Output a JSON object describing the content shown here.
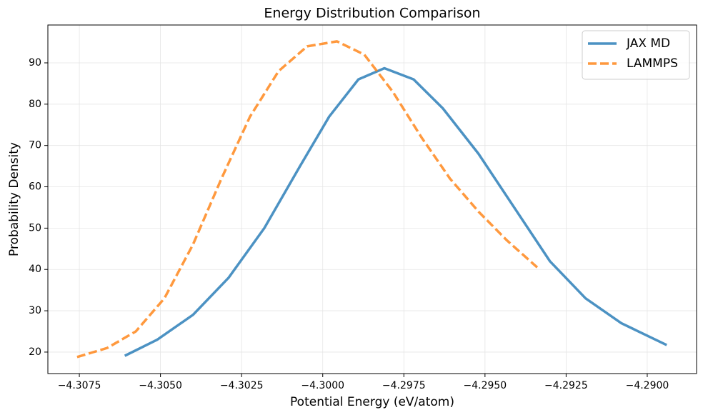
{
  "chart_data": {
    "type": "line",
    "title": "Energy Distribution Comparison",
    "x_label": "Potential Energy (eV/atom)",
    "y_label": "Probability Density",
    "xlim": [
      -4.30847,
      -4.28848
    ],
    "ylim": [
      14.8,
      99.16
    ],
    "xticks": [
      {
        "value": -4.3075,
        "label": "−4.3075"
      },
      {
        "value": -4.305,
        "label": "−4.3050"
      },
      {
        "value": -4.3025,
        "label": "−4.3025"
      },
      {
        "value": -4.3,
        "label": "−4.3000"
      },
      {
        "value": -4.2975,
        "label": "−4.2975"
      },
      {
        "value": -4.295,
        "label": "−4.2950"
      },
      {
        "value": -4.2925,
        "label": "−4.2925"
      },
      {
        "value": -4.29,
        "label": "−4.2900"
      }
    ],
    "yticks": [
      20,
      30,
      40,
      50,
      60,
      70,
      80,
      90
    ],
    "grid": true,
    "legend": "upper right",
    "series": [
      {
        "name": "JAX MD",
        "color": "#1f77b4",
        "dash": "solid",
        "x": [
          -4.3061,
          -4.3051,
          -4.304,
          -4.3029,
          -4.3018,
          -4.3007,
          -4.2998,
          -4.2989,
          -4.2981,
          -4.2972,
          -4.2963,
          -4.2952,
          -4.2941,
          -4.293,
          -4.2919,
          -4.2908,
          -4.2894
        ],
        "values": [
          19.1,
          23,
          29,
          38,
          50,
          65,
          77,
          86,
          88.7,
          86,
          79,
          68,
          55,
          42,
          33,
          27,
          21.7
        ]
      },
      {
        "name": "LAMMPS",
        "color": "#ff7f0e",
        "dash": "dashed",
        "x": [
          -4.30757,
          -4.30664,
          -4.30576,
          -4.30488,
          -4.304,
          -4.30312,
          -4.30224,
          -4.30136,
          -4.30048,
          -4.29956,
          -4.29872,
          -4.29784,
          -4.29696,
          -4.29608,
          -4.2952,
          -4.29432,
          -4.29339
        ],
        "values": [
          18.8,
          21,
          25,
          33,
          46,
          62,
          77,
          88,
          94,
          95.2,
          92,
          83,
          72,
          62,
          54,
          47,
          40.5
        ]
      }
    ]
  }
}
